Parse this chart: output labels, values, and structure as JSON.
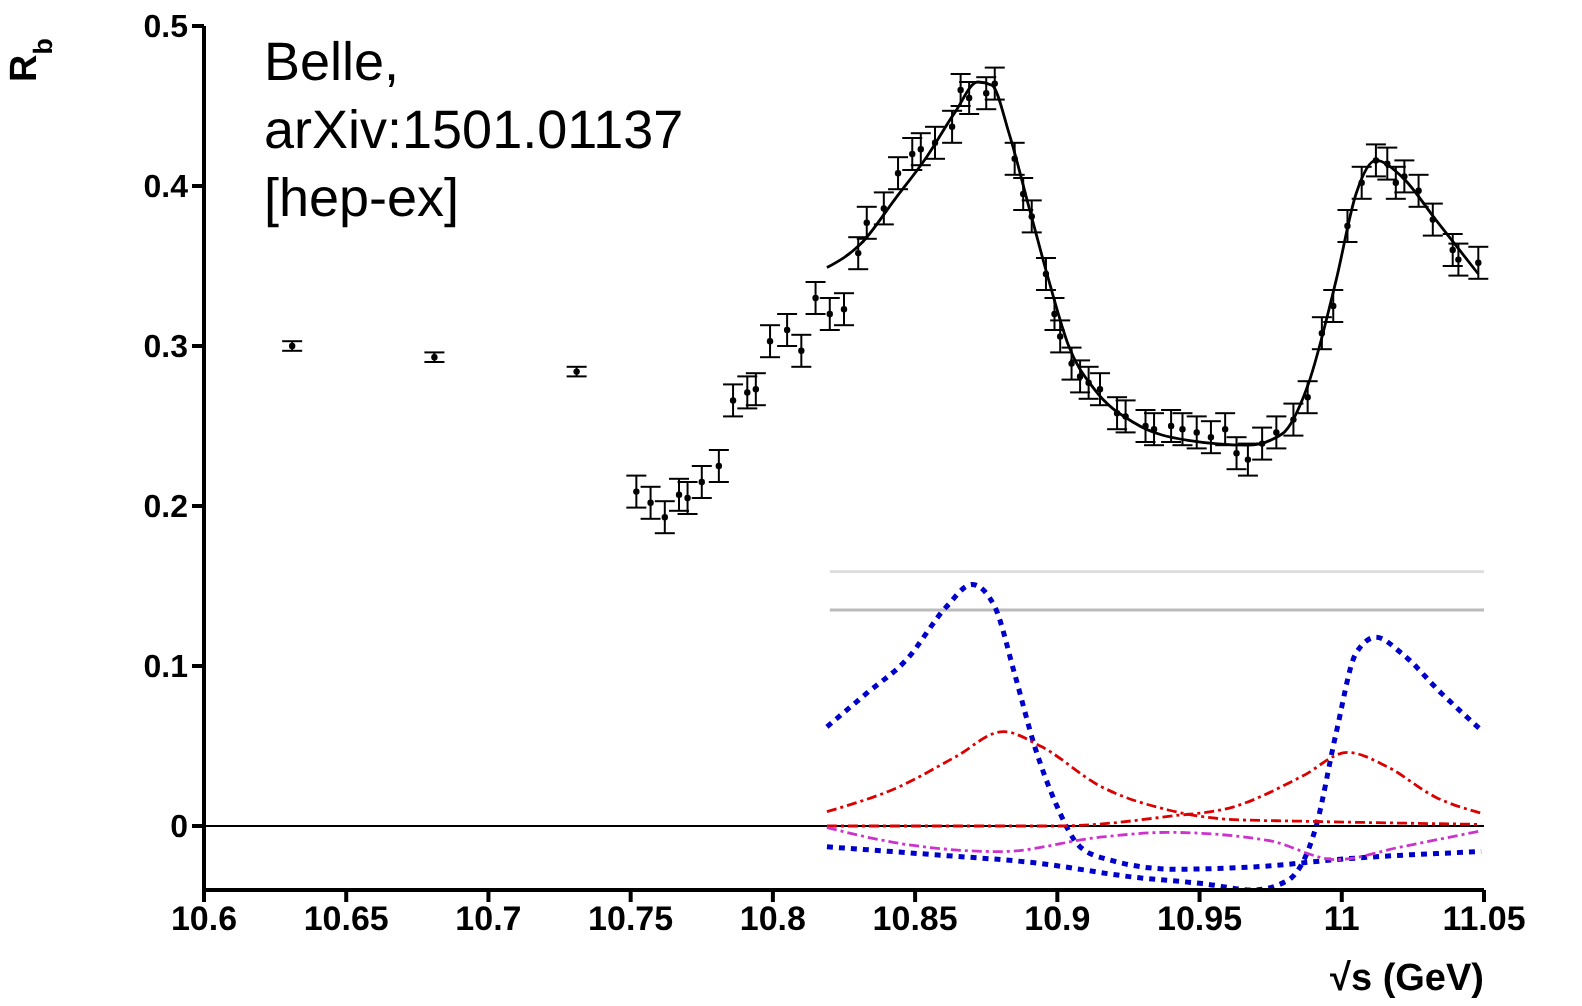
{
  "chart_data": {
    "type": "scatter",
    "xlabel": "√s (GeV)",
    "ylabel": "R$_{b}$",
    "annotations": [
      "Belle,\narXiv:1501.01137\n[hep-ex]"
    ],
    "xlim": [
      10.6,
      11.05
    ],
    "xticks": [
      10.6,
      10.65,
      10.7,
      10.75,
      10.8,
      10.85,
      10.9,
      10.95,
      11,
      11.05
    ],
    "ylim": [
      -0.04,
      0.5
    ],
    "yticks": [
      0,
      0.1,
      0.2,
      0.3,
      0.4,
      0.5
    ],
    "grid": false,
    "legend": false,
    "marker": "circle",
    "ref_lines": [
      {
        "axis": "y",
        "value": 0,
        "color": "#000000",
        "line_style": "solid"
      }
    ],
    "series": [
      {
        "color": "#000000",
        "x": [
          10.631,
          10.681,
          10.731,
          10.752,
          10.757,
          10.762,
          10.767,
          10.77,
          10.775,
          10.781,
          10.786,
          10.791,
          10.794,
          10.799,
          10.805,
          10.81,
          10.815,
          10.82,
          10.825,
          10.83,
          10.833,
          10.839,
          10.844,
          10.849,
          10.852,
          10.857,
          10.863,
          10.866,
          10.869,
          10.875,
          10.878,
          10.885,
          10.888,
          10.891,
          10.896,
          10.899,
          10.901,
          10.905,
          10.908,
          10.911,
          10.915,
          10.921,
          10.924,
          10.931,
          10.934,
          10.94,
          10.944,
          10.949,
          10.954,
          10.959,
          10.963,
          10.967,
          10.972,
          10.977,
          10.983,
          10.988,
          10.993,
          10.997,
          11.002,
          11.007,
          11.012,
          11.016,
          11.019,
          11.022,
          11.027,
          11.032,
          11.039,
          11.041,
          11.048
        ],
        "values": [
          0.3,
          0.293,
          0.284,
          0.209,
          0.202,
          0.193,
          0.207,
          0.205,
          0.215,
          0.225,
          0.266,
          0.271,
          0.273,
          0.303,
          0.31,
          0.297,
          0.33,
          0.32,
          0.323,
          0.358,
          0.377,
          0.386,
          0.408,
          0.42,
          0.423,
          0.427,
          0.437,
          0.46,
          0.455,
          0.458,
          0.464,
          0.417,
          0.395,
          0.381,
          0.345,
          0.32,
          0.306,
          0.289,
          0.281,
          0.277,
          0.273,
          0.258,
          0.256,
          0.25,
          0.248,
          0.25,
          0.248,
          0.246,
          0.243,
          0.248,
          0.233,
          0.229,
          0.239,
          0.246,
          0.254,
          0.268,
          0.308,
          0.325,
          0.375,
          0.402,
          0.416,
          0.414,
          0.402,
          0.406,
          0.397,
          0.379,
          0.36,
          0.354,
          0.352
        ],
        "errors": [
          0.003,
          0.003,
          0.003,
          0.01,
          0.01,
          0.01,
          0.01,
          0.01,
          0.01,
          0.01,
          0.01,
          0.01,
          0.01,
          0.01,
          0.01,
          0.01,
          0.01,
          0.01,
          0.01,
          0.01,
          0.01,
          0.01,
          0.01,
          0.01,
          0.01,
          0.01,
          0.01,
          0.01,
          0.01,
          0.01,
          0.01,
          0.01,
          0.01,
          0.01,
          0.01,
          0.01,
          0.01,
          0.01,
          0.01,
          0.01,
          0.01,
          0.01,
          0.01,
          0.01,
          0.01,
          0.01,
          0.01,
          0.01,
          0.01,
          0.01,
          0.01,
          0.01,
          0.01,
          0.01,
          0.01,
          0.01,
          0.01,
          0.01,
          0.01,
          0.01,
          0.01,
          0.01,
          0.01,
          0.01,
          0.01,
          0.01,
          0.01,
          0.01,
          0.01
        ]
      },
      {
        "type": "line",
        "color": "#000000",
        "line_style": "solid",
        "marker": "none",
        "x": [
          10.819,
          10.831,
          10.843,
          10.854,
          10.864,
          10.872,
          10.877,
          10.883,
          10.89,
          10.897,
          10.904,
          10.913,
          10.927,
          10.946,
          10.967,
          10.979,
          10.988,
          10.998,
          11.005,
          11.012,
          11.021,
          11.033,
          11.048
        ],
        "values": [
          0.349,
          0.364,
          0.392,
          0.418,
          0.446,
          0.465,
          0.463,
          0.433,
          0.387,
          0.341,
          0.3,
          0.273,
          0.252,
          0.241,
          0.238,
          0.245,
          0.275,
          0.341,
          0.395,
          0.416,
          0.406,
          0.379,
          0.345
        ]
      },
      {
        "type": "line",
        "color": "#dddddd",
        "line_style": "solid",
        "marker": "none",
        "x": [
          10.82,
          11.05
        ],
        "values": [
          0.159,
          0.159
        ]
      },
      {
        "type": "line",
        "color": "#bbbbbb",
        "line_style": "solid",
        "marker": "none",
        "x": [
          10.82,
          11.05
        ],
        "values": [
          0.135,
          0.135
        ]
      },
      {
        "type": "line",
        "color": "#0000cc",
        "line_style": "dotted",
        "marker": "none",
        "x": [
          10.819,
          10.833,
          10.847,
          10.861,
          10.87,
          10.878,
          10.885,
          10.892,
          10.899,
          10.908,
          10.918,
          10.941,
          10.974,
          10.998,
          11.049
        ],
        "values": [
          0.062,
          0.083,
          0.104,
          0.137,
          0.151,
          0.137,
          0.095,
          0.05,
          0.016,
          -0.013,
          -0.021,
          -0.027,
          -0.025,
          -0.021,
          -0.016
        ]
      },
      {
        "type": "line",
        "color": "#0000cc",
        "line_style": "dotted",
        "marker": "none",
        "x": [
          10.819,
          10.857,
          10.892,
          10.927,
          10.951,
          10.969,
          10.981,
          10.991,
          10.998,
          11.005,
          11.012,
          11.021,
          11.035,
          11.049
        ],
        "values": [
          -0.013,
          -0.018,
          -0.023,
          -0.032,
          -0.036,
          -0.04,
          -0.034,
          0.0,
          0.058,
          0.108,
          0.118,
          0.108,
          0.083,
          0.06
        ]
      },
      {
        "type": "line",
        "color": "#dd0000",
        "line_style": "dashed",
        "marker": "none",
        "x": [
          10.819,
          10.845,
          10.864,
          10.881,
          10.894,
          10.915,
          10.939,
          10.962,
          10.986,
          11.049
        ],
        "values": [
          0.009,
          0.025,
          0.043,
          0.059,
          0.05,
          0.025,
          0.01,
          0.004,
          0.003,
          0.001
        ]
      },
      {
        "type": "line",
        "color": "#dd0000",
        "line_style": "dashed",
        "marker": "none",
        "x": [
          10.819,
          10.9,
          10.939,
          10.962,
          10.986,
          11.002,
          11.016,
          11.033,
          11.049
        ],
        "values": [
          0.0,
          0.0,
          0.006,
          0.012,
          0.031,
          0.046,
          0.037,
          0.018,
          0.008
        ]
      },
      {
        "type": "line",
        "color": "#cc33cc",
        "line_style": "dashed",
        "marker": "none",
        "x": [
          10.819,
          10.845,
          10.88,
          10.915,
          10.939,
          10.974,
          10.998,
          11.021,
          11.049
        ],
        "values": [
          -0.001,
          -0.011,
          -0.016,
          -0.007,
          -0.004,
          -0.009,
          -0.021,
          -0.013,
          -0.003
        ]
      }
    ]
  }
}
